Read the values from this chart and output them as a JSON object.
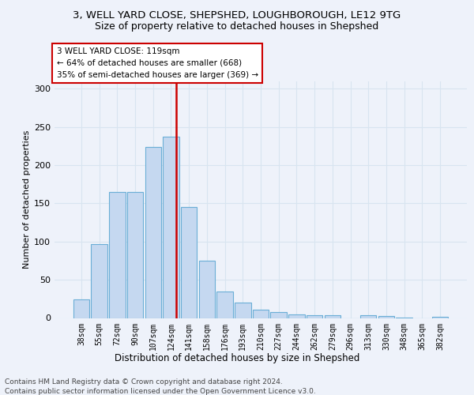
{
  "title1": "3, WELL YARD CLOSE, SHEPSHED, LOUGHBOROUGH, LE12 9TG",
  "title2": "Size of property relative to detached houses in Shepshed",
  "xlabel": "Distribution of detached houses by size in Shepshed",
  "ylabel": "Number of detached properties",
  "categories": [
    "38sqm",
    "55sqm",
    "72sqm",
    "90sqm",
    "107sqm",
    "124sqm",
    "141sqm",
    "158sqm",
    "176sqm",
    "193sqm",
    "210sqm",
    "227sqm",
    "244sqm",
    "262sqm",
    "279sqm",
    "296sqm",
    "313sqm",
    "330sqm",
    "348sqm",
    "365sqm",
    "382sqm"
  ],
  "values": [
    24,
    97,
    165,
    165,
    224,
    237,
    145,
    75,
    35,
    20,
    11,
    8,
    5,
    4,
    4,
    0,
    4,
    3,
    1,
    0,
    2
  ],
  "bar_color": "#c5d8f0",
  "bar_edge_color": "#6aaed6",
  "vline_x": 5.3,
  "vline_color": "#cc0000",
  "annotation_text": "3 WELL YARD CLOSE: 119sqm\n← 64% of detached houses are smaller (668)\n35% of semi-detached houses are larger (369) →",
  "ylim_max": 310,
  "yticks": [
    0,
    50,
    100,
    150,
    200,
    250,
    300
  ],
  "footer_line1": "Contains HM Land Registry data © Crown copyright and database right 2024.",
  "footer_line2": "Contains public sector information licensed under the Open Government Licence v3.0.",
  "bg_color": "#eef2fa",
  "grid_color": "#d8e4f0",
  "title1_fontsize": 9.5,
  "title2_fontsize": 9,
  "tick_fontsize": 7,
  "ylabel_fontsize": 8,
  "xlabel_fontsize": 8.5,
  "annotation_fontsize": 7.5,
  "footer_fontsize": 6.5
}
